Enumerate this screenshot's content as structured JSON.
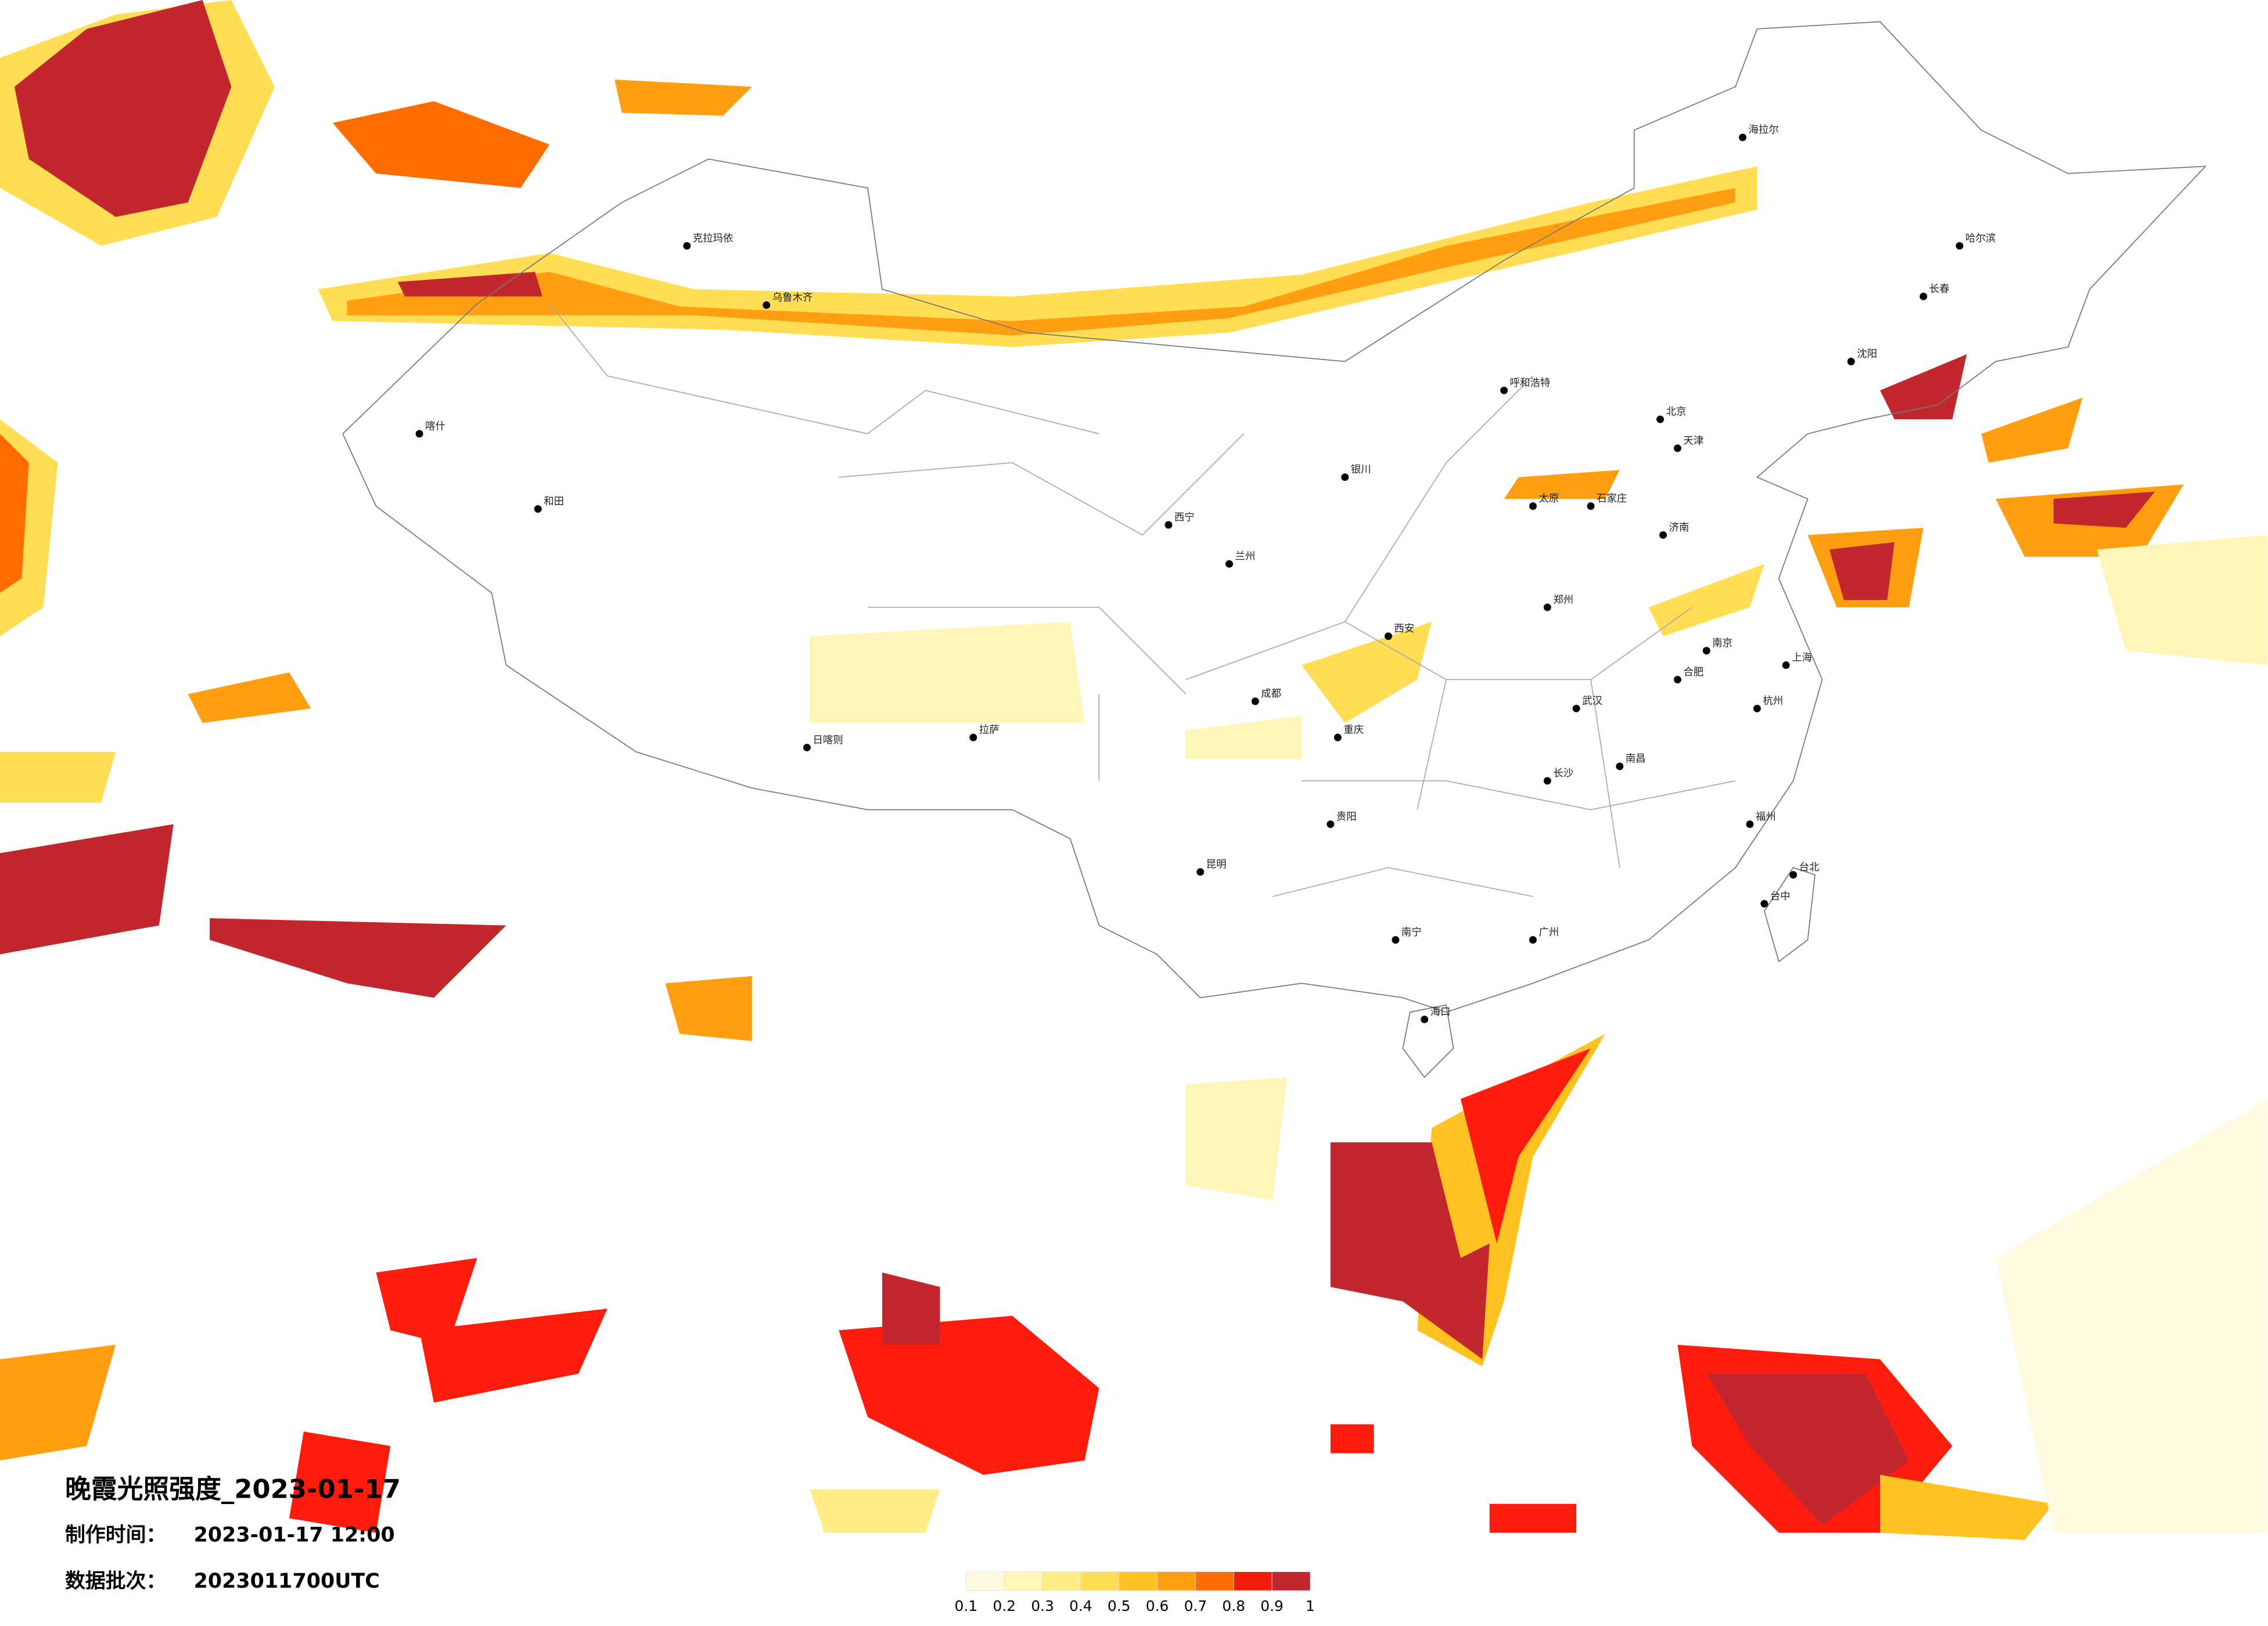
{
  "title": "晚霞光照强度_2023-01-17",
  "production_time": {
    "label": "制作时间：",
    "value": "2023-01-17 12:00"
  },
  "data_batch": {
    "label": "数据批次：",
    "value": "2023011700UTC"
  },
  "legend": {
    "colors": [
      "#fffbe0",
      "#fff5b8",
      "#ffee88",
      "#ffdd55",
      "#ffc220",
      "#ff9e10",
      "#ff6d00",
      "#f51c0c",
      "#c1272d"
    ],
    "ticks": [
      0.1,
      0.2,
      0.3,
      0.4,
      0.5,
      0.6,
      0.7,
      0.8,
      0.9,
      1
    ]
  },
  "cities": [
    "乌鲁木齐",
    "克拉玛依",
    "喀什",
    "和田",
    "拉萨",
    "日喀则",
    "西宁",
    "兰州",
    "成都",
    "重庆",
    "昆明",
    "贵阳",
    "南宁",
    "广州",
    "福州",
    "台北",
    "上海",
    "南京",
    "武汉",
    "长沙",
    "郑州",
    "西安",
    "太原",
    "石家庄",
    "北京",
    "天津",
    "沈阳",
    "长春",
    "哈尔滨",
    "呼和浩特",
    "银川",
    "海口",
    "南昌",
    "杭州",
    "济南",
    "合肥",
    "海拉尔",
    "台中"
  ]
}
